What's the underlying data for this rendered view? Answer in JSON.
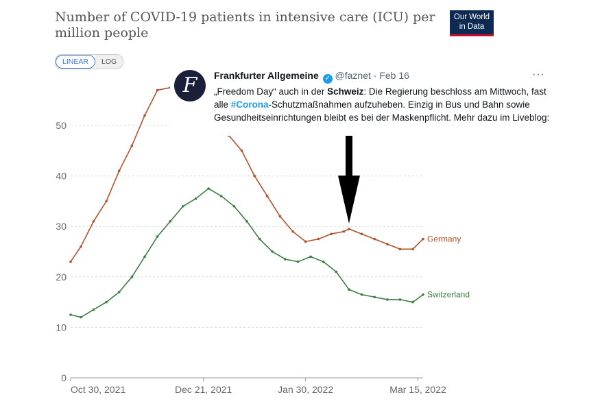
{
  "header": {
    "title": "Number of COVID-19 patients in intensive care (ICU) per million people",
    "logo_line1": "Our World",
    "logo_line2": "in Data"
  },
  "scale_toggle": {
    "linear": "LINEAR",
    "log": "LOG",
    "selected": "LINEAR"
  },
  "tweet": {
    "name": "Frankfurter Allgemeine",
    "handle": "@faznet",
    "sep": "·",
    "date": "Feb 16",
    "more": "···",
    "avatar_letter": "F",
    "text_1": "„Freedom Day“ auch in der ",
    "text_bold": "Schweiz",
    "text_2": ": Die Regierung beschloss am Mittwoch, fast alle ",
    "hashtag": "#Corona",
    "text_3": "-Schutzmaßnahmen aufzuheben. Einzig in Bus und Bahn sowie Gesundheitseinrichtungen bleibt es bei der Maskenpflicht. Mehr dazu im Liveblog:"
  },
  "colors": {
    "germany": "#b0522a",
    "switzerland": "#3c7d43",
    "grid": "#d8d8d8",
    "axis_text": "#666666"
  },
  "chart_data": {
    "type": "line",
    "title": "Number of COVID-19 patients in intensive care (ICU) per million people",
    "x_ticks": [
      "Oct 30, 2021",
      "Dec 21, 2021",
      "Jan 30, 2022",
      "Mar 15, 2022"
    ],
    "y_ticks": [
      0,
      10,
      20,
      30,
      40,
      50
    ],
    "xlim": [
      "2021-10-30",
      "2022-03-17"
    ],
    "ylim": [
      0,
      57
    ],
    "grid": "horizontal dashed",
    "series": [
      {
        "name": "Germany",
        "x": [
          "2021-10-30",
          "2021-11-03",
          "2021-11-08",
          "2021-11-13",
          "2021-11-18",
          "2021-11-23",
          "2021-11-28",
          "2021-12-03",
          "2021-12-08",
          "2021-12-11",
          "2021-12-31",
          "2022-01-05",
          "2022-01-10",
          "2022-01-15",
          "2022-01-20",
          "2022-01-25",
          "2022-01-30",
          "2022-02-04",
          "2022-02-09",
          "2022-02-14",
          "2022-02-16",
          "2022-02-21",
          "2022-02-26",
          "2022-03-03",
          "2022-03-08",
          "2022-03-13",
          "2022-03-17"
        ],
        "y": [
          23,
          26,
          31,
          35,
          41,
          46,
          52,
          57,
          57.5,
          57.5,
          48,
          45,
          40,
          36,
          32,
          29,
          27,
          27.5,
          28.5,
          29,
          29.5,
          28.5,
          27.5,
          26.5,
          25.5,
          25.5,
          27.5
        ]
      },
      {
        "name": "Switzerland",
        "x": [
          "2021-10-30",
          "2021-11-03",
          "2021-11-08",
          "2021-11-13",
          "2021-11-18",
          "2021-11-23",
          "2021-11-28",
          "2021-12-03",
          "2021-12-08",
          "2021-12-13",
          "2021-12-18",
          "2021-12-23",
          "2021-12-28",
          "2022-01-02",
          "2022-01-07",
          "2022-01-12",
          "2022-01-17",
          "2022-01-22",
          "2022-01-27",
          "2022-02-01",
          "2022-02-06",
          "2022-02-11",
          "2022-02-16",
          "2022-02-21",
          "2022-02-26",
          "2022-03-03",
          "2022-03-08",
          "2022-03-13",
          "2022-03-17"
        ],
        "y": [
          12.5,
          12,
          13.5,
          15,
          17,
          20,
          24,
          28,
          31,
          34,
          35.5,
          37.5,
          36,
          34,
          31,
          27.5,
          25,
          23.5,
          23,
          24,
          23,
          21,
          17.5,
          16.5,
          16,
          15.5,
          15.5,
          15,
          16.5
        ]
      }
    ],
    "annotation": "arrow pointing down at Feb 16, 2022"
  }
}
